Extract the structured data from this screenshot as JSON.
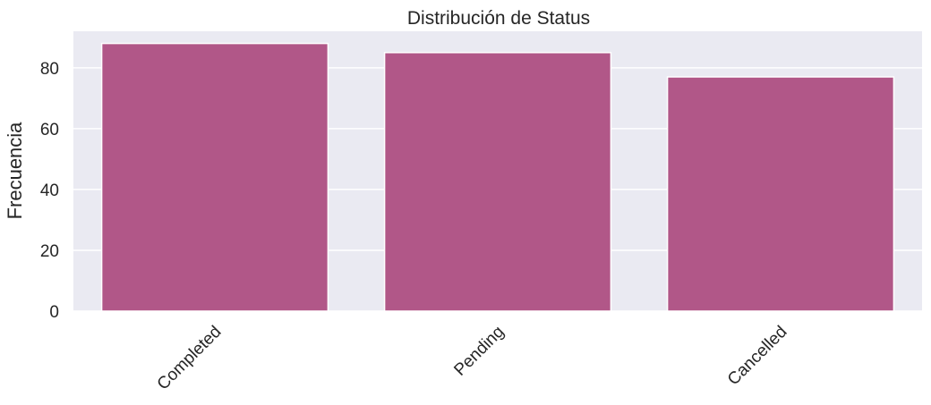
{
  "chart_data": {
    "type": "bar",
    "title": "Distribución de Status",
    "xlabel": "",
    "ylabel": "Frecuencia",
    "categories": [
      "Completed",
      "Pending",
      "Cancelled"
    ],
    "values": [
      88,
      85,
      77
    ],
    "ylim": [
      0,
      92
    ],
    "yticks": [
      0,
      20,
      40,
      60,
      80
    ],
    "grid": true,
    "x_tick_rotation_deg": 45,
    "colors": {
      "bar": "#b15788",
      "plot_background": "#eaeaf2",
      "grid": "#ffffff",
      "text": "#262626"
    }
  }
}
